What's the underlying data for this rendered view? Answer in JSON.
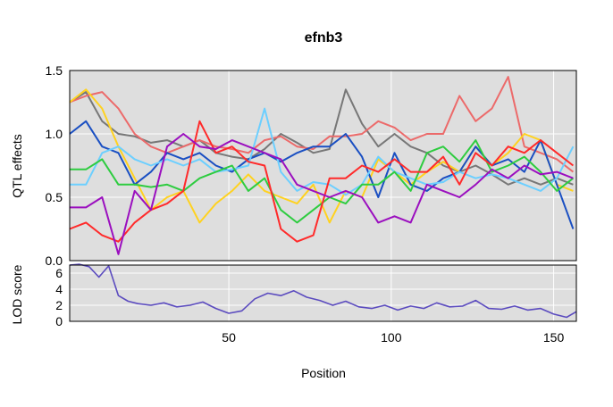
{
  "chart_data": [
    {
      "type": "line",
      "panel": "qtl-effects",
      "title": "efnb3",
      "xlabel": "Position",
      "ylabel": "QTL effects",
      "xlim": [
        1,
        157
      ],
      "ylim": [
        0,
        1.5
      ],
      "xticks": [
        50,
        100,
        150
      ],
      "yticks": [
        0.0,
        0.5,
        1.0,
        1.5
      ],
      "ytick_labels": [
        "0.0",
        "0.5",
        "1.0",
        "1.5"
      ],
      "grid": true,
      "background": "#dedede",
      "x": [
        1,
        6,
        11,
        16,
        21,
        26,
        31,
        36,
        41,
        46,
        51,
        56,
        61,
        66,
        71,
        76,
        81,
        86,
        91,
        96,
        101,
        106,
        111,
        116,
        121,
        126,
        131,
        136,
        141,
        146,
        151,
        156
      ],
      "series": [
        {
          "color": "#777777",
          "values": [
            1.25,
            1.33,
            1.1,
            1.0,
            0.98,
            0.93,
            0.95,
            0.9,
            0.95,
            0.85,
            0.82,
            0.8,
            0.88,
            1.0,
            0.93,
            0.85,
            0.88,
            1.35,
            1.08,
            0.9,
            1.0,
            0.9,
            0.85,
            0.75,
            0.7,
            0.75,
            0.68,
            0.6,
            0.65,
            0.6,
            0.65,
            0.6
          ]
        },
        {
          "color": "#ec6a6a",
          "values": [
            1.25,
            1.3,
            1.33,
            1.2,
            1.0,
            0.9,
            0.85,
            0.9,
            0.95,
            0.9,
            0.88,
            0.85,
            0.95,
            0.98,
            0.9,
            0.88,
            0.98,
            0.98,
            1.0,
            1.1,
            1.05,
            0.95,
            1.0,
            1.0,
            1.3,
            1.1,
            1.2,
            1.45,
            0.9,
            0.85,
            0.8,
            0.7
          ]
        },
        {
          "color": "#ffd21f",
          "values": [
            1.25,
            1.35,
            1.2,
            0.9,
            0.65,
            0.4,
            0.5,
            0.55,
            0.3,
            0.45,
            0.55,
            0.68,
            0.55,
            0.5,
            0.45,
            0.6,
            0.3,
            0.55,
            0.5,
            0.8,
            0.7,
            0.6,
            0.7,
            0.78,
            0.7,
            0.9,
            0.75,
            0.85,
            1.0,
            0.95,
            0.6,
            0.55
          ]
        },
        {
          "color": "#1a4fc2",
          "values": [
            1.0,
            1.1,
            0.9,
            0.85,
            0.6,
            0.7,
            0.85,
            0.8,
            0.85,
            0.75,
            0.7,
            0.8,
            0.85,
            0.78,
            0.85,
            0.9,
            0.9,
            1.0,
            0.82,
            0.5,
            0.85,
            0.6,
            0.55,
            0.65,
            0.7,
            0.9,
            0.75,
            0.8,
            0.7,
            0.95,
            0.6,
            0.25
          ]
        },
        {
          "color": "#6ccfff",
          "values": [
            0.6,
            0.6,
            0.85,
            0.9,
            0.8,
            0.75,
            0.8,
            0.75,
            0.8,
            0.7,
            0.72,
            0.75,
            1.2,
            0.7,
            0.55,
            0.62,
            0.6,
            0.52,
            0.6,
            0.82,
            0.7,
            0.65,
            0.6,
            0.62,
            0.7,
            0.65,
            0.68,
            0.65,
            0.6,
            0.55,
            0.65,
            0.9
          ]
        },
        {
          "color": "#2ecc40",
          "values": [
            0.72,
            0.72,
            0.8,
            0.6,
            0.6,
            0.58,
            0.6,
            0.55,
            0.65,
            0.7,
            0.75,
            0.55,
            0.65,
            0.4,
            0.3,
            0.4,
            0.5,
            0.45,
            0.6,
            0.6,
            0.7,
            0.55,
            0.85,
            0.9,
            0.78,
            0.95,
            0.7,
            0.75,
            0.82,
            0.7,
            0.55,
            0.65
          ]
        },
        {
          "color": "#ff2a2a",
          "values": [
            0.25,
            0.3,
            0.2,
            0.15,
            0.3,
            0.4,
            0.45,
            0.55,
            1.1,
            0.85,
            0.9,
            0.78,
            0.75,
            0.25,
            0.15,
            0.2,
            0.65,
            0.65,
            0.75,
            0.7,
            0.8,
            0.7,
            0.7,
            0.82,
            0.6,
            0.85,
            0.75,
            0.9,
            0.85,
            0.95,
            0.85,
            0.75
          ]
        },
        {
          "color": "#9b0fbf",
          "values": [
            0.42,
            0.42,
            0.5,
            0.05,
            0.55,
            0.4,
            0.9,
            1.0,
            0.9,
            0.88,
            0.95,
            0.9,
            0.85,
            0.8,
            0.6,
            0.55,
            0.5,
            0.55,
            0.5,
            0.3,
            0.35,
            0.3,
            0.6,
            0.55,
            0.5,
            0.6,
            0.72,
            0.65,
            0.75,
            0.68,
            0.7,
            0.65
          ]
        }
      ]
    },
    {
      "type": "line",
      "panel": "lod-score",
      "xlabel": "Position",
      "ylabel": "LOD score",
      "xlim": [
        1,
        157
      ],
      "ylim": [
        0,
        7
      ],
      "xticks": [
        50,
        100,
        150
      ],
      "xtick_labels": [
        "50",
        "100",
        "150"
      ],
      "yticks": [
        0,
        2,
        4,
        6
      ],
      "ytick_labels": [
        "0",
        "2",
        "4",
        "6"
      ],
      "grid": true,
      "background": "#dedede",
      "x": [
        1,
        4,
        7,
        10,
        13,
        16,
        19,
        22,
        26,
        30,
        34,
        38,
        42,
        46,
        50,
        54,
        58,
        62,
        66,
        70,
        74,
        78,
        82,
        86,
        90,
        94,
        98,
        102,
        106,
        110,
        114,
        118,
        122,
        126,
        130,
        134,
        138,
        142,
        146,
        150,
        154,
        157
      ],
      "series": [
        {
          "color": "#5b4bbf",
          "values": [
            7.0,
            7.1,
            6.8,
            5.5,
            6.9,
            3.2,
            2.5,
            2.2,
            2.0,
            2.3,
            1.8,
            2.0,
            2.4,
            1.6,
            1.0,
            1.3,
            2.8,
            3.5,
            3.2,
            3.8,
            3.0,
            2.6,
            2.0,
            2.5,
            1.8,
            1.6,
            2.0,
            1.4,
            1.9,
            1.6,
            2.3,
            1.8,
            1.9,
            2.6,
            1.6,
            1.5,
            1.9,
            1.4,
            1.6,
            0.9,
            0.5,
            1.2
          ]
        }
      ]
    }
  ]
}
